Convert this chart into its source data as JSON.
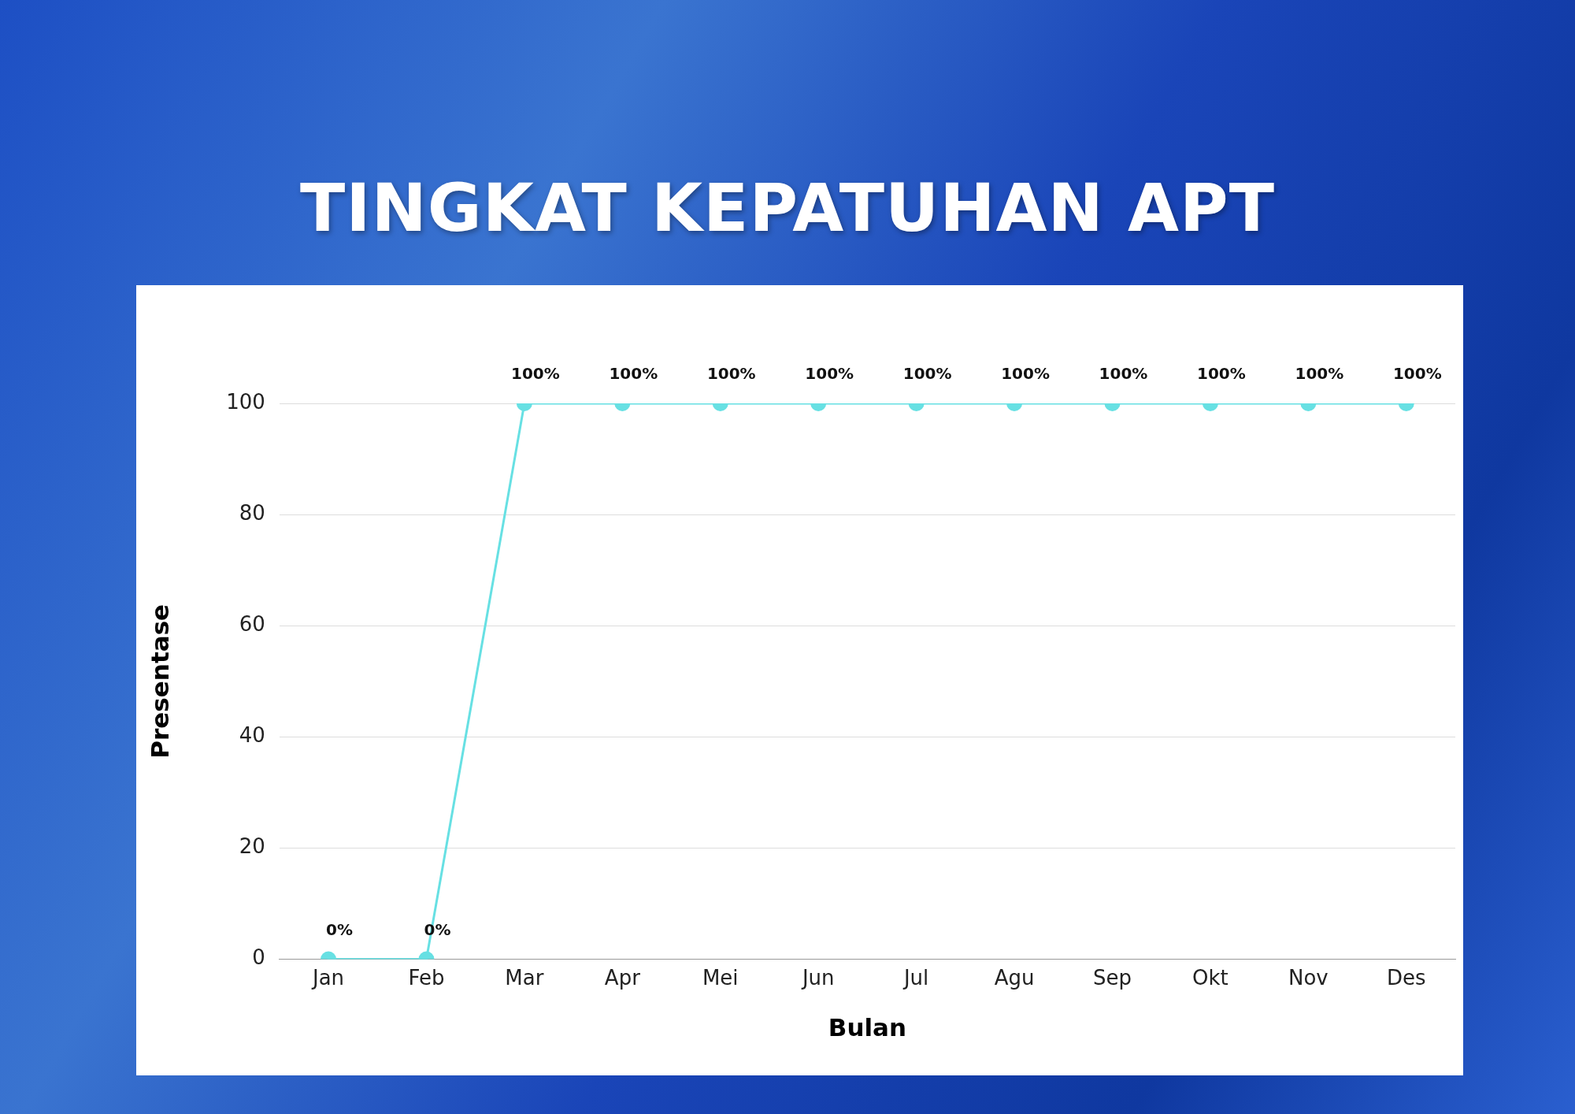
{
  "chart_data": {
    "type": "line",
    "title": "TINGKAT KEPATUHAN APT",
    "xlabel": "Bulan",
    "ylabel": "Presentase",
    "categories": [
      "Jan",
      "Feb",
      "Mar",
      "Apr",
      "Mei",
      "Jun",
      "Jul",
      "Agu",
      "Sep",
      "Okt",
      "Nov",
      "Des"
    ],
    "series": [
      {
        "color": "#67e0e3",
        "values": [
          0,
          0,
          100,
          100,
          100,
          100,
          100,
          100,
          100,
          100,
          100,
          100
        ],
        "value_labels": [
          "0%",
          "0%",
          "100%",
          "100%",
          "100%",
          "100%",
          "100%",
          "100%",
          "100%",
          "100%",
          "100%",
          "100%"
        ]
      }
    ],
    "ylim": [
      0,
      100
    ],
    "yticks": [
      0,
      20,
      40,
      60,
      80,
      100
    ],
    "grid": "y",
    "marker": "circle",
    "line_style": "solid"
  }
}
